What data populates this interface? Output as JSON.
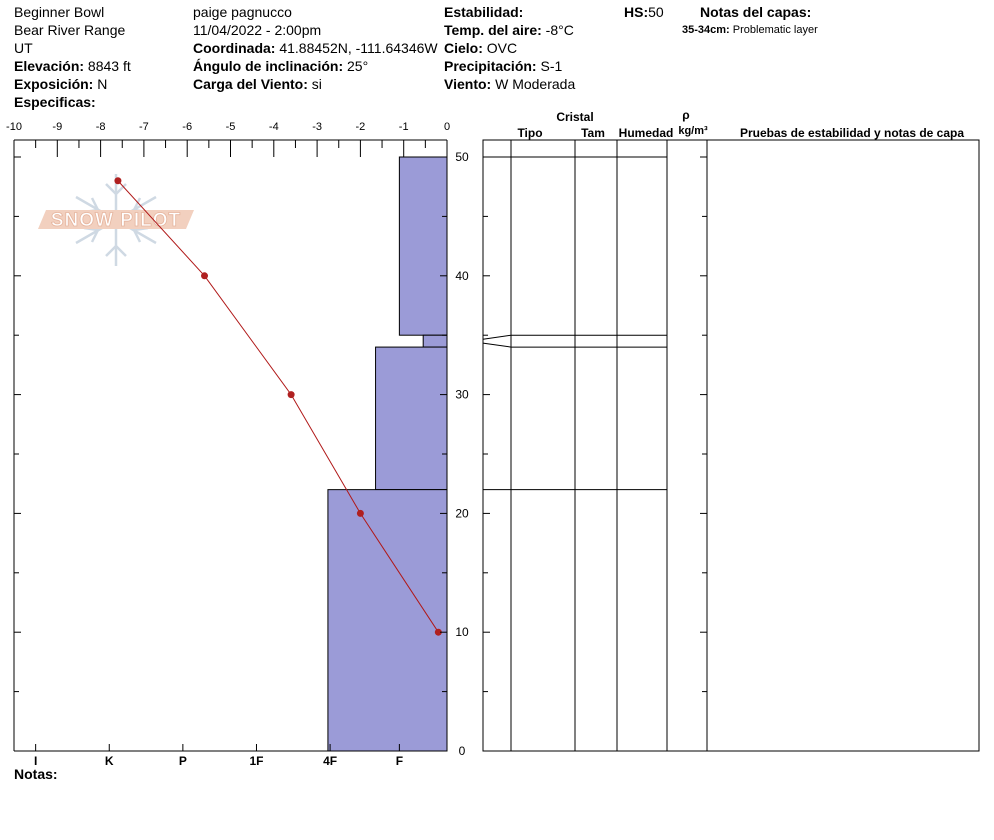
{
  "header": {
    "location": "Beginner Bowl",
    "range": "Bear River Range",
    "state": "UT",
    "elevation_label": "Elevación:",
    "elevation_value": "8843 ft",
    "aspect_label": "Exposición:",
    "aspect_value": "N",
    "specifics_label": "Especificas:",
    "observer": "paige pagnucco",
    "datetime": "11/04/2022 - 2:00pm",
    "coord_label": "Coordinada:",
    "coord_value": "41.88452N, -111.64346W",
    "slope_label": "Ángulo de inclinación:",
    "slope_value": "25°",
    "wind_load_label": "Carga del Viento:",
    "wind_load_value": "si",
    "stability_label": "Estabilidad:",
    "air_temp_label": "Temp. del aire:",
    "air_temp_value": "-8°C",
    "sky_label": "Cielo:",
    "sky_value": "OVC",
    "precip_label": "Precipitación:",
    "precip_value": "S-1",
    "wind_label": "Viento:",
    "wind_value": "W Moderada",
    "hs_label": "HS:",
    "hs_value": "50",
    "layer_notes_label": "Notas del capas:",
    "layer_note_range": "35-34cm:",
    "layer_note_text": "Problematic layer"
  },
  "watermark": {
    "text": "SNOW PILOT"
  },
  "table_headers": {
    "crystal": "Cristal",
    "type": "Tipo",
    "size": "Tam",
    "moisture": "Humedad",
    "rho": "ρ",
    "density_unit": "kg/m³",
    "tests": "Pruebas de estabilidad y notas de capa"
  },
  "notes_label": "Notas:",
  "colors": {
    "hardness_fill": "#9b9bd7",
    "temp_line": "#b01818",
    "temp_point": "#b02020"
  },
  "chart_data": {
    "type": "snow_profile",
    "temperature_axis": {
      "label": "",
      "ticks": [
        "-10",
        "-9",
        "-8",
        "-7",
        "-6",
        "-5",
        "-4",
        "-3",
        "-2",
        "-1",
        "0"
      ],
      "range": [
        -10,
        0
      ]
    },
    "depth_axis": {
      "ticks": [
        "0",
        "10",
        "20",
        "30",
        "40",
        "50"
      ],
      "range": [
        0,
        50
      ]
    },
    "hardness_axis": {
      "ticks": [
        "I",
        "K",
        "P",
        "1F",
        "4F",
        "F"
      ]
    },
    "temperature_profile": [
      {
        "depth": 48,
        "temp": -7.6
      },
      {
        "depth": 40,
        "temp": -5.6
      },
      {
        "depth": 30,
        "temp": -3.6
      },
      {
        "depth": 20,
        "temp": -2.0
      },
      {
        "depth": 10,
        "temp": -0.2
      }
    ],
    "hardness_layers": [
      {
        "top": 50,
        "bottom": 35,
        "hardness_temp_scale": -1.1
      },
      {
        "top": 35,
        "bottom": 34,
        "hardness_temp_scale": -0.55
      },
      {
        "top": 34,
        "bottom": 22,
        "hardness_temp_scale": -1.65
      },
      {
        "top": 22,
        "bottom": 0,
        "hardness_temp_scale": -2.75
      }
    ],
    "layer_boundaries": [
      50,
      35,
      34,
      22
    ]
  }
}
